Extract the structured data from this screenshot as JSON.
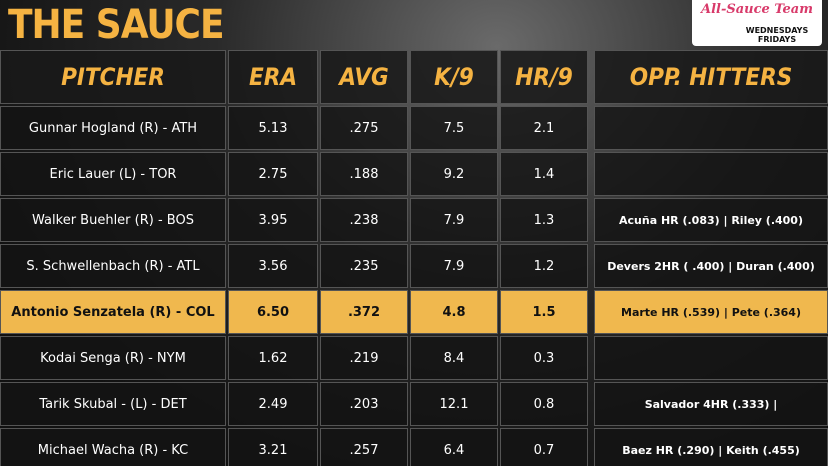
{
  "header": {
    "title": "THE SAUCE",
    "badge": {
      "script": "All-Sauce Team",
      "days": "WEDNESDAYS FRIDAYS"
    }
  },
  "table": {
    "columns": [
      "PITCHER",
      "ERA",
      "AVG",
      "K/9",
      "HR/9",
      "OPP. HITTERS"
    ],
    "rows": [
      [
        "Gunnar Hogland (R) - ATH",
        "5.13",
        ".275",
        "7.5",
        "2.1"
      ],
      [
        "Eric Lauer (L) - TOR",
        "2.75",
        ".188",
        "9.2",
        "1.4"
      ],
      [
        "Walker Buehler (R) - BOS",
        "3.95",
        ".238",
        "7.9",
        "1.3",
        "Acuña HR (.083) | Riley (.400)"
      ],
      [
        "S. Schwellenbach (R) - ATL",
        "3.56",
        ".235",
        "7.9",
        "1.2",
        "Devers 2HR ( .400) | Duran (.400)"
      ],
      [
        "Antonio Senzatela (R) - COL",
        "6.50",
        ".372",
        "4.8",
        "1.5",
        "Marte HR (.539) | Pete (.364)"
      ],
      [
        "Kodai Senga (R) - NYM",
        "1.62",
        ".219",
        "8.4",
        "0.3"
      ],
      [
        "Tarik Skubal - (L) - DET",
        "2.49",
        ".203",
        "12.1",
        "0.8",
        "Salvador 4HR (.333) |"
      ],
      [
        "Michael Wacha (R) - KC",
        "3.21",
        ".257",
        "6.4",
        "0.7",
        "Baez HR (.290) | Keith (.455)"
      ]
    ],
    "highlight_row": 4
  }
}
